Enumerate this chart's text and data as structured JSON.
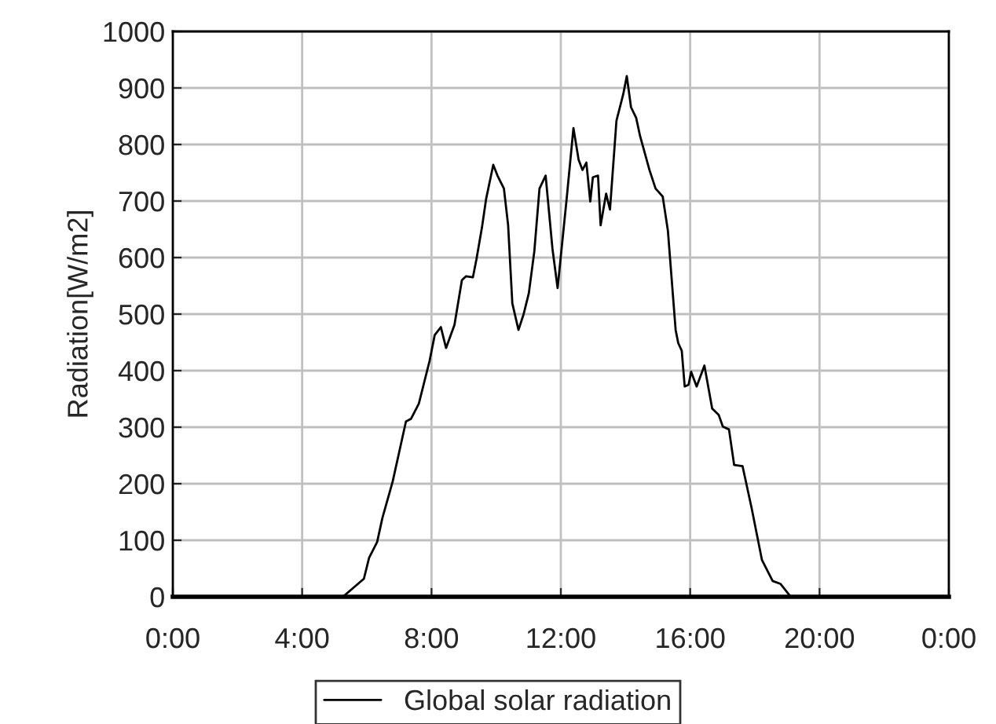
{
  "chart_data": {
    "type": "line",
    "ylabel": "Radiation[W/m2]",
    "xlim": [
      0,
      24
    ],
    "xticks": [
      {
        "value": 0,
        "label": "0:00"
      },
      {
        "value": 4,
        "label": "4:00"
      },
      {
        "value": 8,
        "label": "8:00"
      },
      {
        "value": 12,
        "label": "12:00"
      },
      {
        "value": 16,
        "label": "16:00"
      },
      {
        "value": 20,
        "label": "20:00"
      },
      {
        "value": 24,
        "label": "0:00"
      }
    ],
    "ylim": [
      0,
      1000
    ],
    "yticks": [
      0,
      100,
      200,
      300,
      400,
      500,
      600,
      700,
      800,
      900,
      1000
    ],
    "grid": true,
    "legend": "bottom",
    "marker": "none",
    "line_style": "solid",
    "series": [
      {
        "name": "Global solar radiation",
        "color": "#000000",
        "x": [
          0,
          5.26,
          5.91,
          6.07,
          6.32,
          6.48,
          6.8,
          7.21,
          7.37,
          7.61,
          7.94,
          8.1,
          8.29,
          8.45,
          8.71,
          8.94,
          9.07,
          9.28,
          9.39,
          9.56,
          9.69,
          9.91,
          10.04,
          10.24,
          10.37,
          10.5,
          10.69,
          10.85,
          11.01,
          11.18,
          11.34,
          11.53,
          11.74,
          11.9,
          12.18,
          12.39,
          12.55,
          12.67,
          12.79,
          12.91,
          12.99,
          13.15,
          13.23,
          13.4,
          13.52,
          13.72,
          13.93,
          14.04,
          14.17,
          14.33,
          14.45,
          14.74,
          14.93,
          15.15,
          15.31,
          15.55,
          15.63,
          15.74,
          15.83,
          15.95,
          16.03,
          16.2,
          16.44,
          16.68,
          16.88,
          17.01,
          17.2,
          17.36,
          17.62,
          17.9,
          18.22,
          18.55,
          18.79,
          19.11,
          24
        ],
        "values": [
          0,
          0,
          32,
          69,
          97,
          139,
          204,
          310,
          315,
          342,
          417,
          463,
          477,
          440,
          481,
          560,
          567,
          565,
          597,
          653,
          704,
          764,
          745,
          722,
          657,
          519,
          472,
          500,
          537,
          611,
          722,
          745,
          616,
          546,
          704,
          829,
          773,
          755,
          768,
          699,
          742,
          745,
          657,
          713,
          685,
          842,
          889,
          921,
          866,
          847,
          815,
          755,
          722,
          708,
          648,
          472,
          449,
          435,
          372,
          375,
          398,
          372,
          409,
          333,
          322,
          301,
          296,
          233,
          231,
          157,
          65,
          28,
          23,
          0,
          0
        ]
      }
    ]
  }
}
